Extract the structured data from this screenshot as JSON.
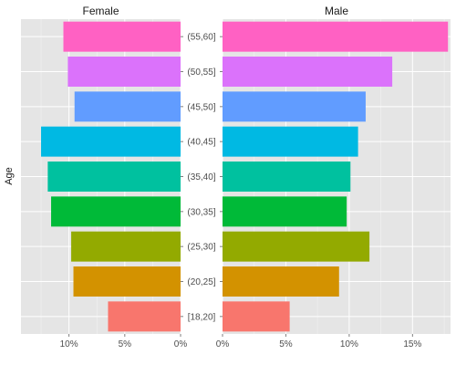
{
  "chart_data": {
    "type": "bar",
    "orientation": "horizontal",
    "ylabel": "Age",
    "categories": [
      "[18,20]",
      "(20,25]",
      "(25,30]",
      "(30,35]",
      "(35,40]",
      "(40,45]",
      "(45,50]",
      "(50,55]",
      "(55,60]"
    ],
    "colors": [
      "#F8766D",
      "#D39200",
      "#93AA00",
      "#00BA38",
      "#00C19F",
      "#00B9E3",
      "#619CFF",
      "#DB72FB",
      "#FF61C3"
    ],
    "grid": true,
    "panels": [
      {
        "title": "Female",
        "reversed_x": true,
        "xlim": [
          0,
          14.3
        ],
        "xticks": [
          10,
          5,
          0
        ],
        "xtick_labels": [
          "10%",
          "5%",
          "0%"
        ],
        "values": [
          6.5,
          9.6,
          9.8,
          11.6,
          11.9,
          12.5,
          9.5,
          10.1,
          10.5
        ]
      },
      {
        "title": "Male",
        "reversed_x": false,
        "xlim": [
          0,
          18.0
        ],
        "xticks": [
          0,
          5,
          10,
          15
        ],
        "xtick_labels": [
          "0%",
          "5%",
          "10%",
          "15%"
        ],
        "values": [
          5.3,
          9.2,
          11.6,
          9.8,
          10.1,
          10.7,
          11.3,
          13.4,
          17.8
        ]
      }
    ]
  }
}
